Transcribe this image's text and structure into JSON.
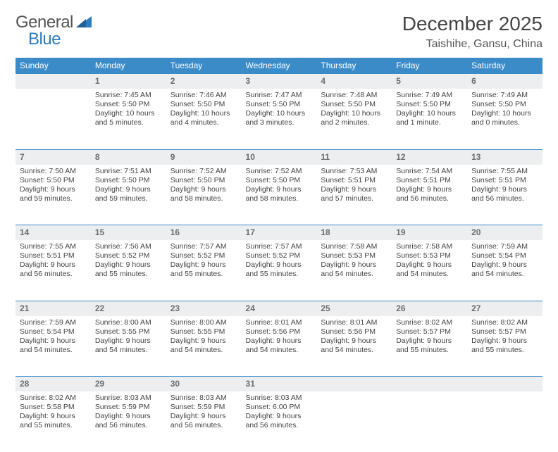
{
  "brand": {
    "part1": "General",
    "part2": "Blue"
  },
  "title": "December 2025",
  "location": "Taishihe, Gansu, China",
  "colors": {
    "header_bg": "#3b8bc9",
    "header_text": "#ffffff",
    "daynum_bg": "#eceef0",
    "daynum_border": "#3b8bc9",
    "daynum_text": "#6a6d70",
    "body_text": "#444444",
    "brand_gray": "#555555",
    "brand_blue": "#2f7bbf"
  },
  "weekdays": [
    "Sunday",
    "Monday",
    "Tuesday",
    "Wednesday",
    "Thursday",
    "Friday",
    "Saturday"
  ],
  "first_day_index": 1,
  "days": [
    {
      "n": 1,
      "sunrise": "7:45 AM",
      "sunset": "5:50 PM",
      "daylight": "10 hours and 5 minutes."
    },
    {
      "n": 2,
      "sunrise": "7:46 AM",
      "sunset": "5:50 PM",
      "daylight": "10 hours and 4 minutes."
    },
    {
      "n": 3,
      "sunrise": "7:47 AM",
      "sunset": "5:50 PM",
      "daylight": "10 hours and 3 minutes."
    },
    {
      "n": 4,
      "sunrise": "7:48 AM",
      "sunset": "5:50 PM",
      "daylight": "10 hours and 2 minutes."
    },
    {
      "n": 5,
      "sunrise": "7:49 AM",
      "sunset": "5:50 PM",
      "daylight": "10 hours and 1 minute."
    },
    {
      "n": 6,
      "sunrise": "7:49 AM",
      "sunset": "5:50 PM",
      "daylight": "10 hours and 0 minutes."
    },
    {
      "n": 7,
      "sunrise": "7:50 AM",
      "sunset": "5:50 PM",
      "daylight": "9 hours and 59 minutes."
    },
    {
      "n": 8,
      "sunrise": "7:51 AM",
      "sunset": "5:50 PM",
      "daylight": "9 hours and 59 minutes."
    },
    {
      "n": 9,
      "sunrise": "7:52 AM",
      "sunset": "5:50 PM",
      "daylight": "9 hours and 58 minutes."
    },
    {
      "n": 10,
      "sunrise": "7:52 AM",
      "sunset": "5:50 PM",
      "daylight": "9 hours and 58 minutes."
    },
    {
      "n": 11,
      "sunrise": "7:53 AM",
      "sunset": "5:51 PM",
      "daylight": "9 hours and 57 minutes."
    },
    {
      "n": 12,
      "sunrise": "7:54 AM",
      "sunset": "5:51 PM",
      "daylight": "9 hours and 56 minutes."
    },
    {
      "n": 13,
      "sunrise": "7:55 AM",
      "sunset": "5:51 PM",
      "daylight": "9 hours and 56 minutes."
    },
    {
      "n": 14,
      "sunrise": "7:55 AM",
      "sunset": "5:51 PM",
      "daylight": "9 hours and 56 minutes."
    },
    {
      "n": 15,
      "sunrise": "7:56 AM",
      "sunset": "5:52 PM",
      "daylight": "9 hours and 55 minutes."
    },
    {
      "n": 16,
      "sunrise": "7:57 AM",
      "sunset": "5:52 PM",
      "daylight": "9 hours and 55 minutes."
    },
    {
      "n": 17,
      "sunrise": "7:57 AM",
      "sunset": "5:52 PM",
      "daylight": "9 hours and 55 minutes."
    },
    {
      "n": 18,
      "sunrise": "7:58 AM",
      "sunset": "5:53 PM",
      "daylight": "9 hours and 54 minutes."
    },
    {
      "n": 19,
      "sunrise": "7:58 AM",
      "sunset": "5:53 PM",
      "daylight": "9 hours and 54 minutes."
    },
    {
      "n": 20,
      "sunrise": "7:59 AM",
      "sunset": "5:54 PM",
      "daylight": "9 hours and 54 minutes."
    },
    {
      "n": 21,
      "sunrise": "7:59 AM",
      "sunset": "5:54 PM",
      "daylight": "9 hours and 54 minutes."
    },
    {
      "n": 22,
      "sunrise": "8:00 AM",
      "sunset": "5:55 PM",
      "daylight": "9 hours and 54 minutes."
    },
    {
      "n": 23,
      "sunrise": "8:00 AM",
      "sunset": "5:55 PM",
      "daylight": "9 hours and 54 minutes."
    },
    {
      "n": 24,
      "sunrise": "8:01 AM",
      "sunset": "5:56 PM",
      "daylight": "9 hours and 54 minutes."
    },
    {
      "n": 25,
      "sunrise": "8:01 AM",
      "sunset": "5:56 PM",
      "daylight": "9 hours and 54 minutes."
    },
    {
      "n": 26,
      "sunrise": "8:02 AM",
      "sunset": "5:57 PM",
      "daylight": "9 hours and 55 minutes."
    },
    {
      "n": 27,
      "sunrise": "8:02 AM",
      "sunset": "5:57 PM",
      "daylight": "9 hours and 55 minutes."
    },
    {
      "n": 28,
      "sunrise": "8:02 AM",
      "sunset": "5:58 PM",
      "daylight": "9 hours and 55 minutes."
    },
    {
      "n": 29,
      "sunrise": "8:03 AM",
      "sunset": "5:59 PM",
      "daylight": "9 hours and 56 minutes."
    },
    {
      "n": 30,
      "sunrise": "8:03 AM",
      "sunset": "5:59 PM",
      "daylight": "9 hours and 56 minutes."
    },
    {
      "n": 31,
      "sunrise": "8:03 AM",
      "sunset": "6:00 PM",
      "daylight": "9 hours and 56 minutes."
    }
  ],
  "labels": {
    "sunrise": "Sunrise:",
    "sunset": "Sunset:",
    "daylight": "Daylight:"
  }
}
